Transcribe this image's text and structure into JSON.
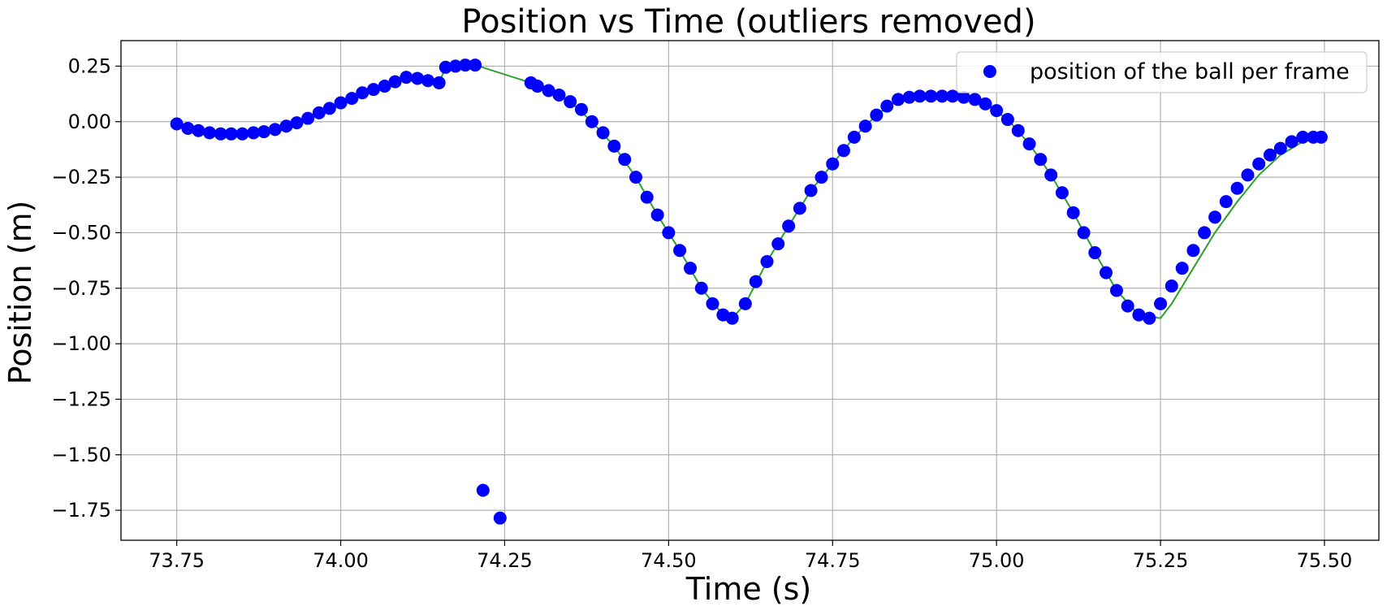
{
  "chart_data": {
    "type": "scatter",
    "title": "Position vs Time (outliers removed)",
    "xlabel": "Time (s)",
    "ylabel": "Position (m)",
    "xlim": [
      73.665,
      75.583
    ],
    "ylim": [
      -1.885,
      0.365
    ],
    "grid": true,
    "legend_position": "top-right",
    "xticks": [
      73.75,
      74.0,
      74.25,
      74.5,
      74.75,
      75.0,
      75.25,
      75.5
    ],
    "xtick_labels": [
      "73.75",
      "74.00",
      "74.25",
      "74.50",
      "74.75",
      "75.00",
      "75.25",
      "75.50"
    ],
    "yticks": [
      0.25,
      0.0,
      -0.25,
      -0.5,
      -0.75,
      -1.0,
      -1.25,
      -1.5,
      -1.75
    ],
    "ytick_labels": [
      "0.25",
      "0.00",
      "−0.25",
      "−0.50",
      "−0.75",
      "−1.00",
      "−1.25",
      "−1.50",
      "−1.75"
    ],
    "colors": {
      "points": "#0000ff",
      "line": "#2ca02c",
      "grid": "#b0b0b0"
    },
    "series": [
      {
        "name": "position of the ball per frame",
        "kind": "scatter",
        "x": [
          73.75,
          73.767,
          73.783,
          73.8,
          73.817,
          73.833,
          73.85,
          73.867,
          73.883,
          73.9,
          73.917,
          73.933,
          73.95,
          73.967,
          73.983,
          74.0,
          74.017,
          74.033,
          74.05,
          74.067,
          74.083,
          74.1,
          74.117,
          74.133,
          74.15,
          74.16,
          74.175,
          74.19,
          74.205,
          74.217,
          74.243,
          74.29,
          74.3,
          74.317,
          74.333,
          74.35,
          74.367,
          74.383,
          74.4,
          74.417,
          74.433,
          74.45,
          74.467,
          74.483,
          74.5,
          74.517,
          74.533,
          74.55,
          74.567,
          74.583,
          74.597,
          74.617,
          74.633,
          74.65,
          74.667,
          74.683,
          74.7,
          74.717,
          74.733,
          74.75,
          74.767,
          74.783,
          74.8,
          74.817,
          74.833,
          74.85,
          74.867,
          74.883,
          74.9,
          74.917,
          74.933,
          74.95,
          74.967,
          74.983,
          75.0,
          75.017,
          75.033,
          75.05,
          75.067,
          75.083,
          75.1,
          75.117,
          75.133,
          75.15,
          75.167,
          75.183,
          75.2,
          75.217,
          75.233,
          75.25,
          75.267,
          75.283,
          75.3,
          75.317,
          75.333,
          75.35,
          75.367,
          75.383,
          75.4,
          75.417,
          75.433,
          75.45,
          75.467,
          75.483,
          75.495
        ],
        "y": [
          -0.01,
          -0.03,
          -0.04,
          -0.05,
          -0.055,
          -0.055,
          -0.055,
          -0.05,
          -0.045,
          -0.035,
          -0.02,
          -0.005,
          0.015,
          0.04,
          0.06,
          0.085,
          0.105,
          0.13,
          0.145,
          0.16,
          0.18,
          0.2,
          0.195,
          0.185,
          0.175,
          0.245,
          0.25,
          0.255,
          0.255,
          -1.66,
          -1.785,
          0.175,
          0.16,
          0.14,
          0.12,
          0.09,
          0.055,
          0.0,
          -0.05,
          -0.11,
          -0.17,
          -0.25,
          -0.34,
          -0.42,
          -0.5,
          -0.58,
          -0.66,
          -0.75,
          -0.82,
          -0.87,
          -0.885,
          -0.82,
          -0.72,
          -0.63,
          -0.55,
          -0.47,
          -0.39,
          -0.31,
          -0.25,
          -0.19,
          -0.13,
          -0.07,
          -0.02,
          0.03,
          0.07,
          0.1,
          0.11,
          0.115,
          0.115,
          0.115,
          0.115,
          0.11,
          0.1,
          0.08,
          0.05,
          0.01,
          -0.04,
          -0.1,
          -0.17,
          -0.24,
          -0.32,
          -0.41,
          -0.5,
          -0.59,
          -0.68,
          -0.76,
          -0.83,
          -0.87,
          -0.885,
          -0.82,
          -0.74,
          -0.66,
          -0.58,
          -0.5,
          -0.43,
          -0.36,
          -0.3,
          -0.24,
          -0.19,
          -0.15,
          -0.12,
          -0.09,
          -0.07,
          -0.07,
          -0.07
        ]
      },
      {
        "name": "",
        "kind": "line",
        "x": [
          73.75,
          73.783,
          73.817,
          73.85,
          73.883,
          73.917,
          73.95,
          73.983,
          74.017,
          74.05,
          74.083,
          74.1,
          74.133,
          74.15,
          74.16,
          74.19,
          74.205,
          74.29,
          74.317,
          74.35,
          74.383,
          74.417,
          74.45,
          74.483,
          74.517,
          74.55,
          74.583,
          74.597,
          74.617,
          74.65,
          74.683,
          74.717,
          74.75,
          74.783,
          74.817,
          74.85,
          74.883,
          74.917,
          74.95,
          74.983,
          75.017,
          75.05,
          75.083,
          75.117,
          75.15,
          75.183,
          75.217,
          75.25,
          75.267,
          75.3,
          75.333,
          75.367,
          75.4,
          75.433,
          75.467,
          75.495
        ],
        "y": [
          -0.01,
          -0.04,
          -0.055,
          -0.055,
          -0.045,
          -0.02,
          0.015,
          0.06,
          0.105,
          0.145,
          0.18,
          0.2,
          0.185,
          0.175,
          0.245,
          0.255,
          0.255,
          0.175,
          0.14,
          0.09,
          0.0,
          -0.11,
          -0.25,
          -0.42,
          -0.58,
          -0.75,
          -0.87,
          -0.885,
          -0.82,
          -0.63,
          -0.47,
          -0.31,
          -0.19,
          -0.07,
          0.03,
          0.1,
          0.115,
          0.115,
          0.11,
          0.08,
          0.01,
          -0.1,
          -0.24,
          -0.41,
          -0.59,
          -0.76,
          -0.87,
          -0.885,
          -0.82,
          -0.66,
          -0.5,
          -0.36,
          -0.24,
          -0.15,
          -0.09,
          -0.07
        ]
      }
    ]
  }
}
